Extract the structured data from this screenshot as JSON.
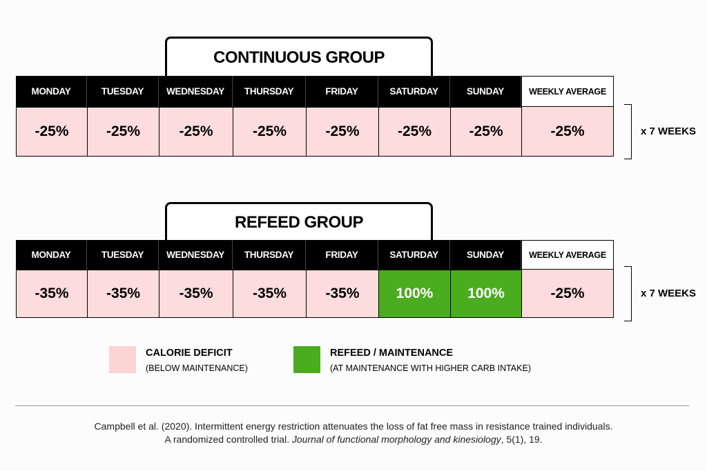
{
  "groups": [
    {
      "title": "CONTINUOUS GROUP",
      "days": [
        "MONDAY",
        "TUESDAY",
        "WEDNESDAY",
        "THURSDAY",
        "FRIDAY",
        "SATURDAY",
        "SUNDAY"
      ],
      "average_header": "WEEKLY AVERAGE",
      "values": [
        {
          "text": "-25%",
          "color": "#fcdcdc"
        },
        {
          "text": "-25%",
          "color": "#fcdcdc"
        },
        {
          "text": "-25%",
          "color": "#fcdcdc"
        },
        {
          "text": "-25%",
          "color": "#fcdcdc"
        },
        {
          "text": "-25%",
          "color": "#fcdcdc"
        },
        {
          "text": "-25%",
          "color": "#fcdcdc"
        },
        {
          "text": "-25%",
          "color": "#fcdcdc"
        }
      ],
      "average": {
        "text": "-25%",
        "color": "#fcdcdc"
      },
      "duration": "x 7 WEEKS"
    },
    {
      "title": "REFEED GROUP",
      "days": [
        "MONDAY",
        "TUESDAY",
        "WEDNESDAY",
        "THURSDAY",
        "FRIDAY",
        "SATURDAY",
        "SUNDAY"
      ],
      "average_header": "WEEKLY AVERAGE",
      "values": [
        {
          "text": "-35%",
          "color": "#fcdcdc"
        },
        {
          "text": "-35%",
          "color": "#fcdcdc"
        },
        {
          "text": "-35%",
          "color": "#fcdcdc"
        },
        {
          "text": "-35%",
          "color": "#fcdcdc"
        },
        {
          "text": "-35%",
          "color": "#fcdcdc"
        },
        {
          "text": "100%",
          "color": "#4aac1f"
        },
        {
          "text": "100%",
          "color": "#4aac1f"
        }
      ],
      "average": {
        "text": "-25%",
        "color": "#fcdcdc"
      },
      "duration": "x 7 WEEKS"
    }
  ],
  "legend": [
    {
      "label": "CALORIE DEFICIT",
      "note": "(BELOW MAINTENANCE)",
      "color": "#fcd4d4"
    },
    {
      "label": "REFEED / MAINTENANCE",
      "note": "(AT MAINTENANCE WITH HIGHER CARB INTAKE)",
      "color": "#4aac1f"
    }
  ],
  "citation": {
    "line1": "Campbell et al. (2020). Intermittent energy restriction attenuates the loss of fat free mass in resistance trained individuals.",
    "line2_start": "A randomized controlled trial. ",
    "journal": "Journal of functional morphology and kinesiology",
    "line2_end": ", 5(1), 19."
  }
}
